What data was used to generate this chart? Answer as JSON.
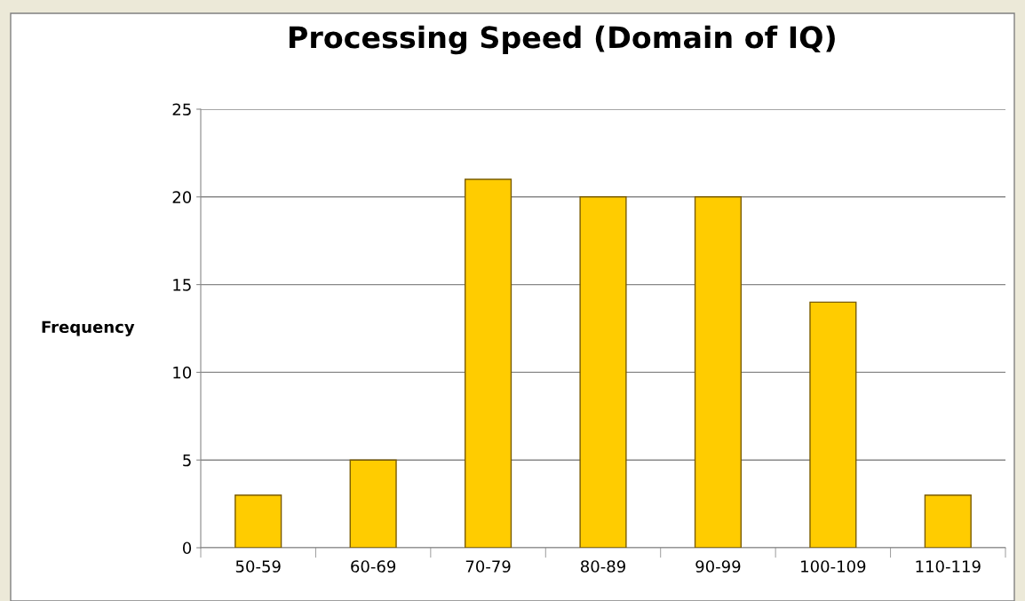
{
  "chart_data": {
    "type": "bar",
    "title": "Processing Speed (Domain of IQ)",
    "ylabel": "Frequency",
    "categories": [
      "50-59",
      "60-69",
      "70-79",
      "80-89",
      "90-99",
      "100-109",
      "110-119"
    ],
    "values": [
      3,
      5,
      21,
      20,
      20,
      14,
      3
    ],
    "color": "#ffcc00",
    "ylim": [
      0,
      25
    ],
    "yticks": [
      0,
      5,
      10,
      15,
      20,
      25
    ],
    "grid": "y",
    "legend": false
  }
}
